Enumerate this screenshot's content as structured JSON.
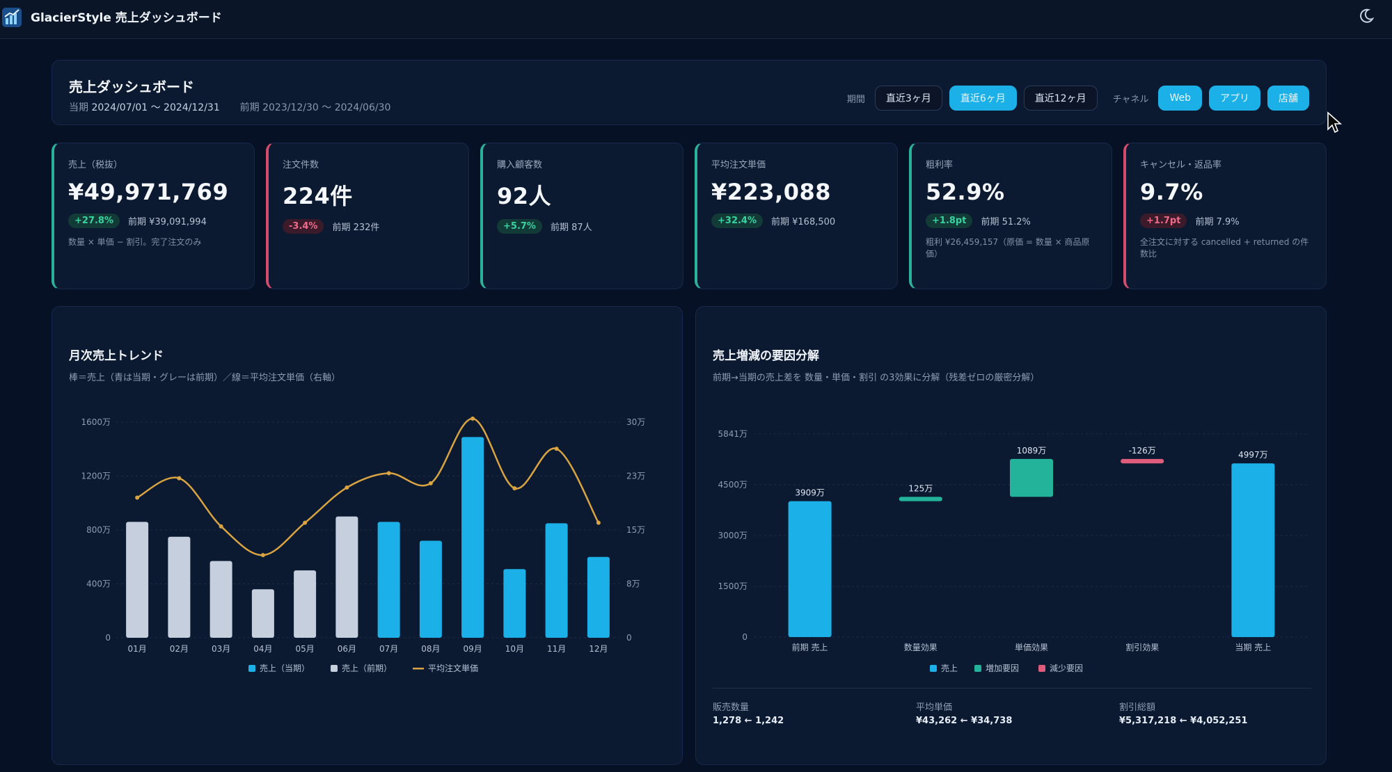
{
  "app": {
    "title": "GlacierStyle 売上ダッシュボード"
  },
  "header": {
    "title": "売上ダッシュボード",
    "current_label": "当期",
    "current_range": "2024/07/01 〜 2024/12/31",
    "prev_label": "前期",
    "prev_range": "2023/12/30 〜 2024/06/30",
    "period_label": "期間",
    "periods": [
      "直近3ヶ月",
      "直近6ヶ月",
      "直近12ヶ月"
    ],
    "active_period": "直近6ヶ月",
    "channel_label": "チャネル",
    "channels": [
      "Web",
      "アプリ",
      "店舗"
    ]
  },
  "kpis": [
    {
      "label": "売上（税抜）",
      "value": "¥49,971,769",
      "delta": "+27.8%",
      "trend": "up",
      "prev": "前期 ¥39,091,994",
      "note": "数量 × 単価 − 割引。完了注文のみ"
    },
    {
      "label": "注文件数",
      "value": "224件",
      "delta": "-3.4%",
      "trend": "down",
      "prev": "前期 232件",
      "note": ""
    },
    {
      "label": "購入顧客数",
      "value": "92人",
      "delta": "+5.7%",
      "trend": "up",
      "prev": "前期 87人",
      "note": ""
    },
    {
      "label": "平均注文単価",
      "value": "¥223,088",
      "delta": "+32.4%",
      "trend": "up",
      "prev": "前期 ¥168,500",
      "note": ""
    },
    {
      "label": "粗利率",
      "value": "52.9%",
      "delta": "+1.8pt",
      "trend": "up",
      "prev": "前期 51.2%",
      "note": "粗利 ¥26,459,157（原価 = 数量 × 商品原価）"
    },
    {
      "label": "キャンセル・返品率",
      "value": "9.7%",
      "delta": "+1.7pt",
      "trend": "down",
      "prev": "前期 7.9%",
      "note": "全注文に対する cancelled + returned の件数比"
    }
  ],
  "colors": {
    "accent": "#1cb0e8",
    "prev_bar": "#c5cfde",
    "line": "#d9a441",
    "increase": "#22b39a",
    "decrease": "#e05c7c"
  },
  "trend_panel": {
    "title": "月次売上トレンド",
    "subtitle": "棒＝売上（青は当期・グレーは前期）／線＝平均注文単価（右軸）"
  },
  "waterfall_panel": {
    "title": "売上増減の要因分解",
    "subtitle": "前期→当期の売上差を 数量・単価・割引 の3効果に分解（残差ゼロの厳密分解）",
    "stats": [
      {
        "label": "販売数量",
        "value": "1,278 ← 1,242"
      },
      {
        "label": "平均単価",
        "value": "¥43,262 ← ¥34,738"
      },
      {
        "label": "割引総額",
        "value": "¥5,317,218 ← ¥4,052,251"
      }
    ]
  },
  "chart_data": [
    {
      "type": "bar",
      "title": "月次売上トレンド",
      "categories": [
        "01月",
        "02月",
        "03月",
        "04月",
        "05月",
        "06月",
        "07月",
        "08月",
        "09月",
        "10月",
        "11月",
        "12月"
      ],
      "series": [
        {
          "name": "売上（当期）",
          "values": [
            null,
            null,
            null,
            null,
            null,
            null,
            860,
            720,
            1490,
            510,
            850,
            600
          ]
        },
        {
          "name": "売上（前期）",
          "values": [
            860,
            750,
            570,
            360,
            500,
            900,
            null,
            null,
            null,
            null,
            null,
            null
          ]
        },
        {
          "name": "平均注文単価",
          "axis": "right",
          "values": [
            195000,
            222000,
            155000,
            115000,
            160000,
            209000,
            229000,
            215000,
            305000,
            208000,
            263000,
            160000
          ]
        }
      ],
      "y_ticks": [
        "0",
        "400万",
        "800万",
        "1200万",
        "1600万"
      ],
      "y_right_ticks": [
        "0",
        "8万",
        "15万",
        "23万",
        "30万"
      ],
      "ylim": [
        0,
        1600
      ],
      "y2lim": [
        0,
        300000
      ],
      "legend": [
        "売上（当期）",
        "売上（前期）",
        "平均注文単価"
      ]
    },
    {
      "type": "bar",
      "title": "売上増減の要因分解",
      "categories": [
        "前期 売上",
        "数量効果",
        "単価効果",
        "割引効果",
        "当期 売上"
      ],
      "bars": [
        {
          "label": "3909万",
          "start": 0,
          "end": 3909,
          "kind": "total"
        },
        {
          "label": "125万",
          "start": 3909,
          "end": 4034,
          "kind": "increase"
        },
        {
          "label": "1089万",
          "start": 4034,
          "end": 5123,
          "kind": "increase"
        },
        {
          "label": "-126万",
          "start": 5123,
          "end": 4997,
          "kind": "decrease"
        },
        {
          "label": "4997万",
          "start": 0,
          "end": 4997,
          "kind": "total"
        }
      ],
      "y_ticks": [
        "0",
        "1500万",
        "3000万",
        "4500万",
        "5841万"
      ],
      "ylim": [
        0,
        5841
      ],
      "legend": [
        "売上",
        "増加要因",
        "減少要因"
      ]
    }
  ]
}
